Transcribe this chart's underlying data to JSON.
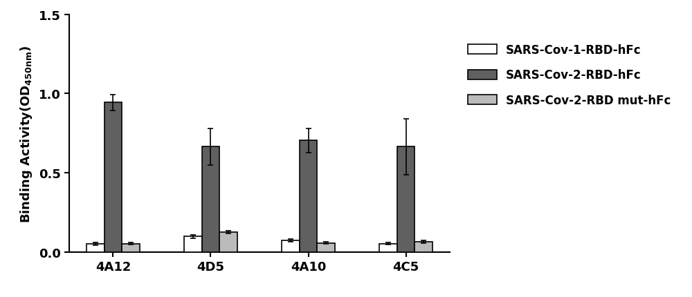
{
  "groups": [
    "4A12",
    "4D5",
    "4A10",
    "4C5"
  ],
  "series": [
    {
      "label": "SARS-Cov-1-RBD-hFc",
      "color": "#ffffff",
      "edgecolor": "#000000",
      "values": [
        0.055,
        0.1,
        0.075,
        0.055
      ],
      "errors": [
        0.008,
        0.01,
        0.008,
        0.007
      ]
    },
    {
      "label": "SARS-Cov-2-RBD-hFc",
      "color": "#606060",
      "edgecolor": "#000000",
      "values": [
        0.945,
        0.665,
        0.705,
        0.665
      ],
      "errors": [
        0.05,
        0.115,
        0.075,
        0.175
      ]
    },
    {
      "label": "SARS-Cov-2-RBD mut-hFc",
      "color": "#bbbbbb",
      "edgecolor": "#000000",
      "values": [
        0.055,
        0.128,
        0.06,
        0.065
      ],
      "errors": [
        0.007,
        0.01,
        0.007,
        0.009
      ]
    }
  ],
  "ylim": [
    0.0,
    1.5
  ],
  "yticks": [
    0.0,
    0.5,
    1.0,
    1.5
  ],
  "bar_width": 0.18,
  "background_color": "#ffffff",
  "legend_fontsize": 12,
  "tick_fontsize": 13,
  "ylabel_fontsize": 13
}
